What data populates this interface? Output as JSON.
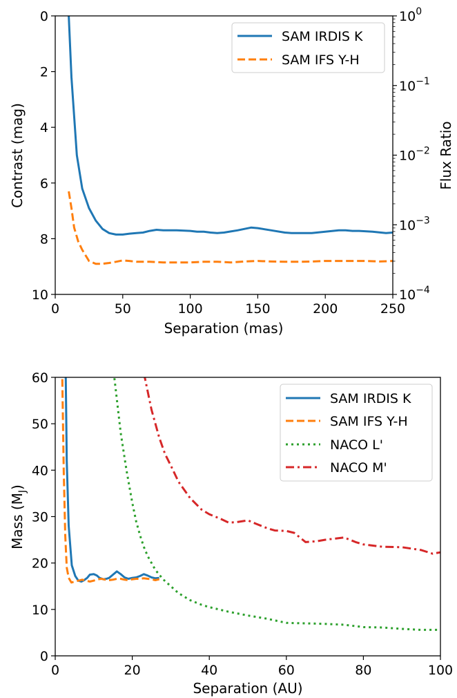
{
  "chart_data": [
    {
      "type": "line",
      "xlabel": "Separation (mas)",
      "ylabel": "Contrast (mag)",
      "y2label": "Flux Ratio",
      "xlim": [
        0,
        250
      ],
      "ylim": [
        0,
        10
      ],
      "y_inverted": true,
      "xticks": [
        "0",
        "50",
        "100",
        "150",
        "200",
        "250"
      ],
      "yticks": [
        "0",
        "2",
        "4",
        "6",
        "8",
        "10"
      ],
      "y2scale": "log",
      "y2ticks": [
        {
          "base": "10",
          "exp": "0",
          "mag": 0
        },
        {
          "base": "10",
          "exp": "−1",
          "mag": 2.5
        },
        {
          "base": "10",
          "exp": "−2",
          "mag": 5
        },
        {
          "base": "10",
          "exp": "−3",
          "mag": 7.5
        },
        {
          "base": "10",
          "exp": "−4",
          "mag": 10
        }
      ],
      "legend_position": "top-right",
      "grid": false,
      "series": [
        {
          "name": "SAM IRDIS K",
          "color": "#1f77b4",
          "dash": "solid",
          "x": [
            5,
            10,
            12,
            16,
            20,
            25,
            30,
            35,
            40,
            45,
            50,
            55,
            60,
            65,
            70,
            75,
            80,
            90,
            100,
            105,
            110,
            115,
            120,
            125,
            130,
            135,
            140,
            145,
            150,
            160,
            170,
            175,
            180,
            190,
            200,
            210,
            215,
            220,
            225,
            235,
            245,
            250
          ],
          "y": [
            -2,
            0,
            2.2,
            5.0,
            6.2,
            6.9,
            7.35,
            7.65,
            7.8,
            7.85,
            7.85,
            7.82,
            7.8,
            7.78,
            7.72,
            7.68,
            7.7,
            7.7,
            7.72,
            7.75,
            7.75,
            7.78,
            7.8,
            7.78,
            7.74,
            7.7,
            7.65,
            7.6,
            7.62,
            7.7,
            7.78,
            7.8,
            7.8,
            7.8,
            7.75,
            7.7,
            7.7,
            7.72,
            7.72,
            7.75,
            7.8,
            7.78
          ]
        },
        {
          "name": "SAM IFS Y-H",
          "color": "#ff7f0e",
          "dash": "dashed",
          "x": [
            10,
            12,
            14,
            17,
            20,
            25,
            30,
            35,
            40,
            45,
            50,
            55,
            60,
            70,
            80,
            90,
            100,
            110,
            120,
            130,
            140,
            150,
            160,
            170,
            180,
            190,
            200,
            210,
            220,
            230,
            240,
            250
          ],
          "y": [
            6.3,
            6.9,
            7.6,
            8.1,
            8.4,
            8.8,
            8.9,
            8.9,
            8.87,
            8.83,
            8.78,
            8.8,
            8.83,
            8.83,
            8.85,
            8.85,
            8.85,
            8.83,
            8.83,
            8.85,
            8.82,
            8.8,
            8.82,
            8.83,
            8.83,
            8.82,
            8.8,
            8.8,
            8.8,
            8.8,
            8.82,
            8.8
          ]
        }
      ]
    },
    {
      "type": "line",
      "xlabel": "Separation (AU)",
      "ylabel_main": "Mass (M",
      "ylabel_sub": "J",
      "ylabel_close": ")",
      "xlim": [
        0,
        100
      ],
      "ylim": [
        0,
        60
      ],
      "xticks": [
        "0",
        "20",
        "40",
        "60",
        "80",
        "100"
      ],
      "yticks": [
        "0",
        "10",
        "20",
        "30",
        "40",
        "50",
        "60"
      ],
      "legend_position": "top-right",
      "grid": false,
      "series": [
        {
          "name": "SAM IRDIS K",
          "color": "#1f77b4",
          "dash": "solid",
          "x": [
            2.7,
            3.0,
            3.5,
            4.3,
            5.2,
            6.0,
            6.8,
            7.5,
            8.3,
            9.0,
            10.0,
            10.8,
            11.5,
            12.5,
            13.3,
            14.0,
            15.0,
            16.0,
            17.0,
            18.0,
            19.0,
            20.0,
            21.0,
            22.0,
            23.0,
            24.0,
            25.0,
            26.0,
            27.0
          ],
          "y": [
            62,
            42,
            28,
            19.5,
            17.2,
            16.2,
            16.0,
            16.3,
            16.8,
            17.5,
            17.6,
            17.3,
            16.8,
            16.5,
            16.6,
            16.8,
            17.5,
            18.2,
            17.6,
            16.9,
            16.6,
            16.8,
            16.9,
            17.2,
            17.6,
            17.3,
            16.9,
            16.7,
            16.8
          ]
        },
        {
          "name": "SAM IFS Y-H",
          "color": "#ff7f0e",
          "dash": "dashed",
          "x": [
            1.8,
            2.2,
            2.6,
            3.0,
            3.5,
            4.2,
            5.0,
            6.0,
            7.0,
            8.0,
            9.0,
            10.0,
            11.0,
            12.0,
            13.0,
            14.0,
            15.0,
            16.0,
            17.0,
            18.0,
            19.0,
            20.0,
            21.0,
            22.0,
            23.0,
            24.0,
            25.0,
            26.0,
            27.0
          ],
          "y": [
            62,
            40,
            26,
            19.0,
            16.8,
            15.8,
            16.0,
            16.2,
            16.4,
            16.2,
            16.0,
            16.2,
            16.5,
            16.6,
            16.4,
            16.3,
            16.4,
            16.6,
            16.6,
            16.4,
            16.3,
            16.5,
            16.6,
            16.6,
            16.7,
            16.6,
            16.5,
            16.3,
            16.5
          ]
        },
        {
          "name": "NACO L'",
          "color": "#2ca02c",
          "dash": "dotted",
          "x": [
            15.2,
            17.0,
            18.5,
            20.0,
            21.0,
            22.0,
            23.0,
            24.0,
            26.0,
            28.0,
            30.0,
            32.0,
            35.0,
            38.0,
            40.0,
            45.0,
            50.0,
            55.0,
            60.0,
            65.0,
            70.0,
            75.0,
            80.0,
            85.0,
            90.0,
            95.0,
            100.0
          ],
          "y": [
            61,
            48,
            40,
            33,
            29,
            26,
            23.5,
            21.5,
            18.5,
            16.5,
            15.0,
            13.5,
            12.0,
            11.0,
            10.5,
            9.5,
            8.7,
            8.0,
            7.1,
            7.0,
            6.9,
            6.7,
            6.2,
            6.1,
            5.8,
            5.6,
            5.6
          ]
        },
        {
          "name": "NACO M'",
          "color": "#d62728",
          "dash": "dashdot",
          "x": [
            23.0,
            25.0,
            27.0,
            28.5,
            30.0,
            32.0,
            35.0,
            38.0,
            40.0,
            43.0,
            45.0,
            47.0,
            50.0,
            52.0,
            55.0,
            57.0,
            60.0,
            62.0,
            65.0,
            68.0,
            70.0,
            73.0,
            75.0,
            78.0,
            80.0,
            85.0,
            90.0,
            95.0,
            98.0,
            100.0
          ],
          "y": [
            61,
            53,
            47,
            43.5,
            41,
            37.5,
            34,
            31.5,
            30.5,
            29.5,
            28.7,
            28.8,
            29.2,
            28.5,
            27.5,
            27.0,
            26.9,
            26.5,
            24.5,
            24.7,
            25.0,
            25.3,
            25.5,
            24.5,
            24.0,
            23.5,
            23.4,
            22.8,
            22.0,
            22.3
          ]
        }
      ]
    }
  ]
}
